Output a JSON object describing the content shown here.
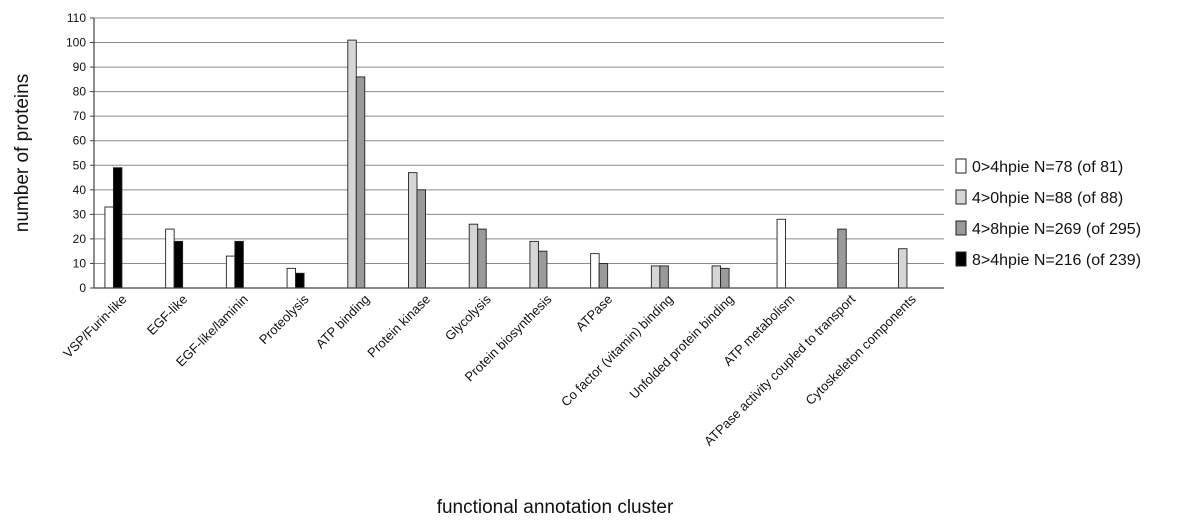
{
  "chart_data": {
    "type": "bar",
    "title": "",
    "xlabel": "functional annotation cluster",
    "ylabel": "number of proteins",
    "ylim": [
      0,
      110
    ],
    "yticks": [
      0,
      10,
      20,
      30,
      40,
      50,
      60,
      70,
      80,
      90,
      100,
      110
    ],
    "grid": true,
    "legend_position": "right",
    "categories": [
      "VSP/Furin-like",
      "EGF-like",
      "EGF-like/laminin",
      "Proteolysis",
      "ATP binding",
      "Protein kinase",
      "Glycolysis",
      "Protein biosynthesis",
      "ATPase",
      "Co factor (vitamin) binding",
      "Unfolded protein binding",
      "ATP metabolism",
      "ATPase activity coupled to transport",
      "Cytoskeleton components"
    ],
    "series": [
      {
        "name": "0>4hpie",
        "legend_label": "0>4hpie  N=78 (of 81)",
        "color": "#ffffff",
        "values": [
          33,
          24,
          13,
          8,
          0,
          0,
          0,
          0,
          14,
          0,
          0,
          28,
          0,
          0
        ]
      },
      {
        "name": "4>0hpie",
        "legend_label": "4>0hpie  N=88 (of 88)",
        "color": "#d6d6d6",
        "values": [
          0,
          0,
          0,
          0,
          101,
          47,
          26,
          19,
          0,
          9,
          9,
          0,
          0,
          16
        ]
      },
      {
        "name": "4>8hpie",
        "legend_label": "4>8hpie  N=269 (of 295)",
        "color": "#9a9a9a",
        "values": [
          0,
          0,
          0,
          0,
          86,
          40,
          24,
          15,
          10,
          9,
          8,
          0,
          24,
          0
        ]
      },
      {
        "name": "8>4hpie",
        "legend_label": "8>4hpie  N=216 (of 239)",
        "color": "#000000",
        "values": [
          49,
          19,
          19,
          6,
          0,
          0,
          0,
          0,
          0,
          0,
          0,
          0,
          0,
          0
        ]
      }
    ]
  }
}
